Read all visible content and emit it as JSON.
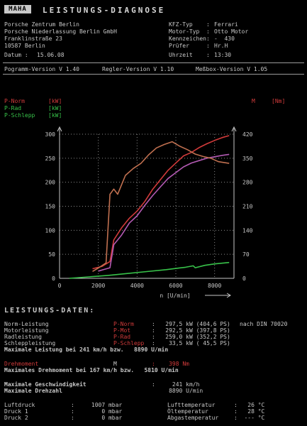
{
  "header": {
    "logo": "MAHA",
    "title": "LEISTUNGS-DIAGNOSE",
    "company": [
      "Porsche Zentrum Berlin",
      "Porsche Niederlassung Berlin GmbH",
      "Franklinstraße 23",
      "10587 Berlin"
    ],
    "date_label": "Datum :",
    "date": "15.06.08",
    "vehicle_labels": [
      "KFZ-Typ",
      "Motor-Typ",
      "Kennzeichen",
      "Prüfer",
      "Uhrzeit"
    ],
    "vehicle_values": [
      "Ferrari",
      "Otto Motor",
      "-  430",
      "Hr.H",
      "13:30"
    ],
    "versions": [
      "Pogramm-Version V 1.40",
      "Regler-Version V 1.10",
      "Meßbox-Version V 1.05"
    ]
  },
  "legend": {
    "items": [
      {
        "name": "P-Norm",
        "unit": "[kW]",
        "color": "#d23b3b"
      },
      {
        "name": "P-Rad",
        "unit": "[kW]",
        "color": "#b35ab3"
      },
      {
        "name": "P-Schlepp",
        "unit": "[kW]",
        "color": "#38c34a"
      }
    ],
    "torque_label": "M",
    "torque_unit": "[Nm]"
  },
  "chart_data": {
    "type": "line",
    "xlabel": "n [U/min]",
    "xlim": [
      0,
      9000
    ],
    "x_ticks": [
      "0",
      "2000",
      "4000",
      "6000",
      "8000"
    ],
    "ylim_left": [
      0,
      300
    ],
    "y_ticks_left": [
      "0",
      "50",
      "100",
      "150",
      "200",
      "250",
      "300"
    ],
    "ylim_right": [
      0,
      420
    ],
    "y_ticks_right": [
      "0",
      "70",
      "140",
      "210",
      "280",
      "350",
      "420"
    ],
    "grid": true,
    "series": [
      {
        "name": "P-Norm",
        "axis": "left",
        "color": "#d23b3b",
        "x": [
          1700,
          2200,
          2600,
          2800,
          3200,
          3600,
          4000,
          4400,
          4800,
          5200,
          5600,
          6000,
          6400,
          6800,
          7200,
          7600,
          8000,
          8400,
          8750
        ],
        "y": [
          20,
          25,
          35,
          80,
          105,
          125,
          140,
          160,
          185,
          205,
          225,
          240,
          255,
          262,
          272,
          280,
          287,
          293,
          297
        ]
      },
      {
        "name": "P-Rad",
        "axis": "left",
        "color": "#b35ab3",
        "x": [
          2000,
          2600,
          2800,
          3200,
          3600,
          4000,
          4400,
          4800,
          5200,
          5600,
          6000,
          6400,
          6800,
          7200,
          7600,
          8000,
          8400,
          8750
        ],
        "y": [
          15,
          22,
          70,
          90,
          115,
          130,
          152,
          172,
          190,
          208,
          220,
          232,
          240,
          245,
          250,
          253,
          256,
          258
        ]
      },
      {
        "name": "P-Schlepp",
        "axis": "left",
        "color": "#38c34a",
        "x": [
          500,
          1500,
          2500,
          3500,
          4500,
          5500,
          6500,
          6900,
          7000,
          7500,
          8000,
          8750
        ],
        "y": [
          0,
          3,
          6,
          10,
          14,
          18,
          23,
          26,
          22,
          27,
          30,
          33
        ]
      },
      {
        "name": "M",
        "axis": "right",
        "color": "#c07050",
        "x": [
          1700,
          2000,
          2400,
          2600,
          2800,
          3000,
          3400,
          3800,
          4200,
          4600,
          5000,
          5400,
          5810,
          6200,
          6600,
          7000,
          7400,
          7800,
          8200,
          8750
        ],
        "y": [
          20,
          30,
          45,
          245,
          260,
          245,
          300,
          320,
          335,
          360,
          380,
          390,
          398,
          385,
          375,
          362,
          355,
          350,
          340,
          335
        ]
      }
    ]
  },
  "data_section": {
    "title": "LEISTUNGS-DATEN:",
    "rows": [
      {
        "label": "Norm-Leistung",
        "key": "P-Norm",
        "value": ":   297,5 kW (404,6 PS)",
        "extra": "nach DIN 70020"
      },
      {
        "label": "Motorleistung",
        "key": "P-Mot",
        "value": ":   292,5 kW (397,8 PS)",
        "extra": ""
      },
      {
        "label": "Radleistung",
        "key": "P-Rad",
        "value": ":   259,0 kW (352,2 PS)",
        "extra": ""
      },
      {
        "label": "Schleppleistung",
        "key": "P-Schlepp",
        "value": ":    33,5 kW ( 45,5 PS)",
        "extra": ""
      }
    ],
    "max_power": "Maximale Leistung bei 241 km/h bzw.   8890 U/min",
    "torque_label": "Drehmoment",
    "torque_key": "M",
    "torque_value": ":    398 Nm",
    "max_torque": "Maximales Drehmoment bei 167 km/h bzw.   5810 U/min",
    "max_speed_label": "Maximale Geschwindigkeit",
    "max_speed_value": ":     241 km/h",
    "max_rpm_label": "Maximale Drehzahl",
    "max_rpm_value": "     8890 U/min",
    "env_left": [
      {
        "label": "Luftdruck",
        "value": ":     1007 mbar"
      },
      {
        "label": "Druck 1",
        "value": ":        0 mbar"
      },
      {
        "label": "Druck 2",
        "value": ":        0 mbar"
      }
    ],
    "env_right": [
      {
        "label": "Lufttemperatur",
        "value": ":   26 °C"
      },
      {
        "label": "Öltemperatur",
        "value": ":   28 °C"
      },
      {
        "label": "Abgastemperatur",
        "value": ":  --- °C"
      }
    ]
  }
}
